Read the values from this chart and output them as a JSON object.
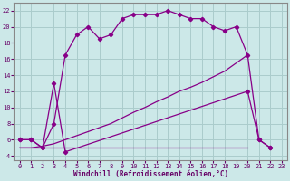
{
  "background_color": "#cce8e8",
  "grid_color": "#aacccc",
  "line_color": "#880088",
  "xlabel": "Windchill (Refroidissement éolien,°C)",
  "xlim": [
    -0.5,
    23.5
  ],
  "ylim": [
    3.5,
    23
  ],
  "xticks": [
    0,
    1,
    2,
    3,
    4,
    5,
    6,
    7,
    8,
    9,
    10,
    11,
    12,
    13,
    14,
    15,
    16,
    17,
    18,
    19,
    20,
    21,
    22,
    23
  ],
  "yticks": [
    4,
    6,
    8,
    10,
    12,
    14,
    16,
    18,
    20,
    22
  ],
  "series": [
    {
      "x": [
        0,
        1,
        2,
        3,
        4,
        5,
        6,
        7,
        8,
        9,
        10,
        11,
        12,
        13,
        14,
        15,
        16,
        17,
        18,
        19,
        20,
        21,
        22
      ],
      "y": [
        6,
        6,
        5,
        8,
        16.5,
        19,
        20,
        18.5,
        19,
        21,
        21.5,
        21.5,
        21.5,
        22,
        21.5,
        21,
        21,
        20,
        19.5,
        20,
        16.5,
        6,
        5
      ],
      "marker": true
    },
    {
      "x": [
        0,
        1,
        2,
        3,
        4,
        20,
        21,
        22
      ],
      "y": [
        6,
        6,
        5,
        13,
        4.5,
        12,
        6,
        5
      ],
      "marker": true
    },
    {
      "x": [
        0,
        1,
        2,
        3,
        4,
        5,
        6,
        7,
        8,
        9,
        10,
        11,
        12,
        13,
        14,
        15,
        16,
        17,
        18,
        19,
        20
      ],
      "y": [
        5,
        5,
        5,
        5,
        5,
        5,
        5,
        5,
        5,
        5,
        5,
        5,
        5,
        5,
        5,
        5,
        5,
        5,
        5,
        5,
        5
      ],
      "marker": false
    },
    {
      "x": [
        0,
        1,
        2,
        3,
        4,
        5,
        6,
        7,
        8,
        9,
        10,
        11,
        12,
        13,
        14,
        15,
        16,
        17,
        18,
        19,
        20
      ],
      "y": [
        5,
        5,
        5.2,
        5.5,
        6.0,
        6.5,
        7.0,
        7.5,
        8.0,
        8.7,
        9.4,
        10.0,
        10.7,
        11.3,
        12.0,
        12.5,
        13.1,
        13.8,
        14.5,
        15.5,
        16.5
      ],
      "marker": false
    }
  ]
}
